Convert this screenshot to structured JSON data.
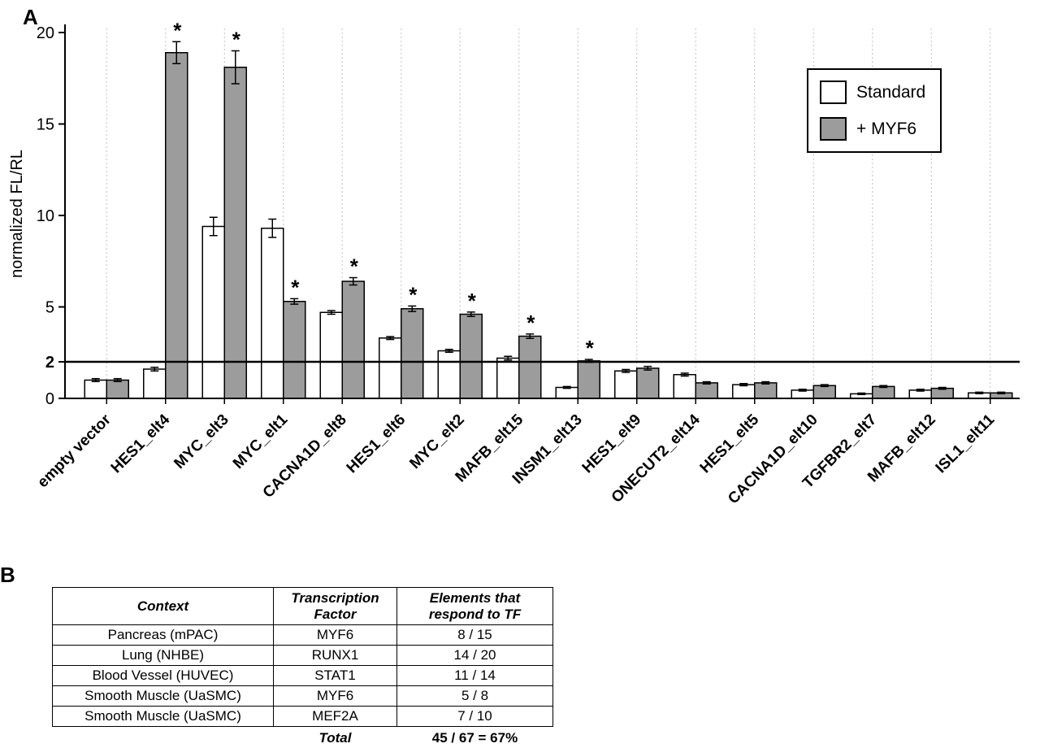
{
  "figure": {
    "panel_a_label": "A",
    "panel_b_label": "B"
  },
  "chart_data": {
    "type": "bar",
    "title": "",
    "xlabel": "",
    "ylabel": "normalized FL/RL",
    "ylim": [
      0,
      20
    ],
    "yticks": [
      0,
      2,
      5,
      10,
      15,
      20
    ],
    "reference_line_y": 2,
    "grid": "vertical-dashed",
    "legend_position": "top-right",
    "categories": [
      "empty vector",
      "HES1_elt4",
      "MYC_elt3",
      "MYC_elt1",
      "CACNA1D_elt8",
      "HES1_elt6",
      "MYC_elt2",
      "MAFB_elt15",
      "INSM1_elt13",
      "HES1_elt9",
      "ONECUT2_elt14",
      "HES1_elt5",
      "CACNA1D_elt10",
      "TGFBR2_elt7",
      "MAFB_elt12",
      "ISL1_elt11"
    ],
    "series": [
      {
        "name": "Standard",
        "color": "#ffffff",
        "values": [
          1.0,
          1.6,
          9.4,
          9.3,
          4.7,
          3.3,
          2.6,
          2.2,
          0.6,
          1.5,
          1.3,
          0.75,
          0.45,
          0.25,
          0.45,
          0.3
        ],
        "errors": [
          0.08,
          0.1,
          0.5,
          0.5,
          0.1,
          0.08,
          0.08,
          0.1,
          0.05,
          0.08,
          0.08,
          0.06,
          0.05,
          0.04,
          0.05,
          0.04
        ],
        "significant": [
          false,
          false,
          false,
          false,
          false,
          false,
          false,
          false,
          false,
          false,
          false,
          false,
          false,
          false,
          false,
          false
        ]
      },
      {
        "name": "+ MYF6",
        "color": "#9c9c9c",
        "values": [
          1.0,
          18.9,
          18.1,
          5.3,
          6.4,
          4.9,
          4.6,
          3.4,
          2.05,
          1.65,
          0.85,
          0.85,
          0.7,
          0.65,
          0.55,
          0.3
        ],
        "errors": [
          0.08,
          0.6,
          0.9,
          0.15,
          0.2,
          0.15,
          0.12,
          0.12,
          0.08,
          0.1,
          0.06,
          0.06,
          0.05,
          0.05,
          0.05,
          0.04
        ],
        "significant": [
          false,
          true,
          true,
          true,
          true,
          true,
          true,
          true,
          true,
          false,
          false,
          false,
          false,
          false,
          false,
          false
        ]
      }
    ]
  },
  "table": {
    "headers": [
      "Context",
      "Transcription Factor",
      "Elements that respond to TF"
    ],
    "rows": [
      [
        "Pancreas (mPAC)",
        "MYF6",
        "8 / 15"
      ],
      [
        "Lung (NHBE)",
        "RUNX1",
        "14 / 20"
      ],
      [
        "Blood Vessel (HUVEC)",
        "STAT1",
        "11 / 14"
      ],
      [
        "Smooth Muscle (UaSMC)",
        "MYF6",
        "5 / 8"
      ],
      [
        "Smooth Muscle (UaSMC)",
        "MEF2A",
        "7 / 10"
      ]
    ],
    "total_label": "Total",
    "total_value": "45 / 67 = 67%"
  }
}
